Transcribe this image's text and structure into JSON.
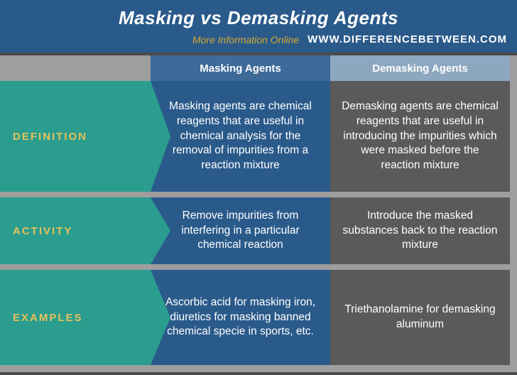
{
  "header": {
    "title": "Masking vs Demasking Agents",
    "moreInfo": "More Information Online",
    "site": "WWW.DIFFERENCEBETWEEN.COM"
  },
  "columns": {
    "c1": "Masking Agents",
    "c2": "Demasking Agents"
  },
  "rows": {
    "definition": {
      "label": "DEFINITION",
      "c1": "Masking agents are chemical reagents that are useful in chemical analysis for the removal of impurities from a reaction mixture",
      "c2": "Demasking agents are chemical reagents that are useful in introducing the impurities which were masked before the reaction mixture"
    },
    "activity": {
      "label": "ACTIVITY",
      "c1": "Remove impurities from interfering in a particular chemical reaction",
      "c2": "Introduce the masked substances back to the reaction mixture"
    },
    "examples": {
      "label": "EXAMPLES",
      "c1": "Ascorbic acid for masking iron, diuretics for masking banned chemical specie in sports, etc.",
      "c2": "Triethanolamine for demasking aluminum"
    }
  },
  "colors": {
    "bg": "#9e9e9e",
    "headerBlue": "#2a5a8a",
    "teal": "#2a9d8f",
    "gold": "#e8c15a",
    "cellGray": "#5a5a5a",
    "colHead1": "#3d6a99",
    "colHead2": "#8ea7c0"
  }
}
